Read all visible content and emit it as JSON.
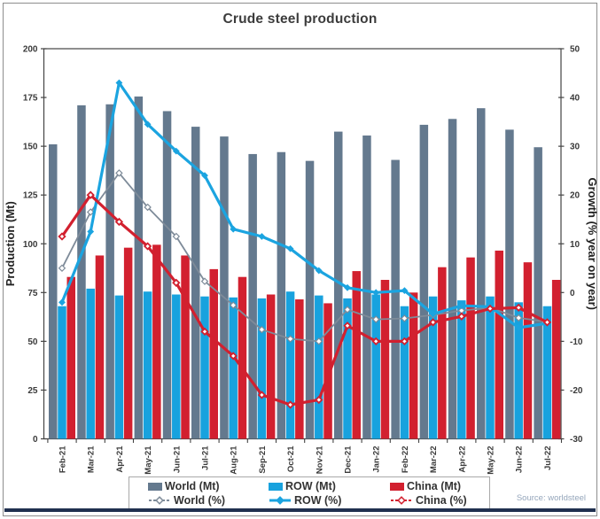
{
  "source_note": "Source: worldsteel",
  "chart_data": {
    "type": "combo bar+line, dual axis",
    "title": "Crude steel production",
    "categories": [
      "Feb-21",
      "Mar-21",
      "Apr-21",
      "May-21",
      "Jun-21",
      "Jul-21",
      "Aug-21",
      "Sep-21",
      "Oct-21",
      "Nov-21",
      "Dec-21",
      "Jan-22",
      "Feb-22",
      "Mar-22",
      "Apr-22",
      "May-22",
      "Jun-22",
      "Jul-22"
    ],
    "left_axis": {
      "label": "Production (Mt)",
      "min": 0,
      "max": 200,
      "step": 25
    },
    "right_axis": {
      "label": "Growth (% year on year)",
      "min": -30,
      "max": 50,
      "step": 10
    },
    "grid": false,
    "bar_series": [
      {
        "name": "World (Mt)",
        "axis": "left",
        "color": "#64798e",
        "values": [
          151,
          171,
          171.5,
          175.5,
          168,
          160,
          155,
          146,
          147,
          142.5,
          157.5,
          155.5,
          143,
          161,
          164,
          169.5,
          158.5,
          149.5
        ]
      },
      {
        "name": "ROW (Mt)",
        "axis": "left",
        "color": "#18a2de",
        "values": [
          68,
          77,
          73.5,
          75.5,
          74,
          73,
          72.5,
          72,
          75.5,
          73.5,
          72,
          74,
          68,
          73,
          71,
          73,
          70,
          68
        ]
      },
      {
        "name": "China (Mt)",
        "axis": "left",
        "color": "#d2202f",
        "values": [
          83,
          94,
          98,
          99.5,
          94,
          87,
          83,
          74,
          71.5,
          69.5,
          86,
          81.5,
          75,
          88,
          93,
          96.5,
          90.5,
          81.5
        ]
      }
    ],
    "line_series": [
      {
        "name": "World (%)",
        "axis": "right",
        "color": "#7e8b99",
        "marker": "diamond-hollow",
        "width": 1.8,
        "values": [
          5,
          16.5,
          24.5,
          17.5,
          11.5,
          2.3,
          -2.6,
          -7.6,
          -9.5,
          -10,
          -3.5,
          -5.5,
          -5.3,
          -4.6,
          -3.7,
          -3.1,
          -5.2,
          -6
        ]
      },
      {
        "name": "ROW (%)",
        "axis": "right",
        "color": "#1ba4e0",
        "marker": "diamond-solid",
        "width": 3.2,
        "values": [
          -2,
          12.5,
          43,
          34.5,
          29,
          24,
          13,
          11.5,
          9,
          4.5,
          1,
          0,
          0.4,
          -4.4,
          -2.7,
          -2.9,
          -7.2,
          -6.3
        ]
      },
      {
        "name": "China (%)",
        "axis": "right",
        "color": "#d2202f",
        "marker": "diamond-hollow",
        "width": 3.2,
        "values": [
          11.5,
          20,
          14.5,
          9.5,
          2,
          -8,
          -13,
          -21,
          -23,
          -22,
          -6.8,
          -10,
          -10,
          -6.1,
          -4.9,
          -3.3,
          -3.1,
          -6.1
        ]
      }
    ],
    "legend": {
      "position": "bottom",
      "items": [
        {
          "label": "World (Mt)",
          "series": "World (Mt)"
        },
        {
          "label": "ROW (Mt)",
          "series": "ROW (Mt)"
        },
        {
          "label": "China (Mt)",
          "series": "China (Mt)"
        },
        {
          "label": "World (%)",
          "series": "World (%)"
        },
        {
          "label": "ROW (%)",
          "series": "ROW (%)"
        },
        {
          "label": "China (%)",
          "series": "China (%)"
        }
      ]
    }
  },
  "style_colors": {
    "title_text": "#3c3c3c",
    "axis_line": "#444444",
    "tick_text": "#3a3a3a",
    "axis_title_text": "#222222",
    "legend_border": "#a9a9a9",
    "legend_text": "#333333",
    "source_text": "#95a6bb",
    "bottom_rule": "#20304f",
    "outer_border": "#8d8d8d"
  }
}
